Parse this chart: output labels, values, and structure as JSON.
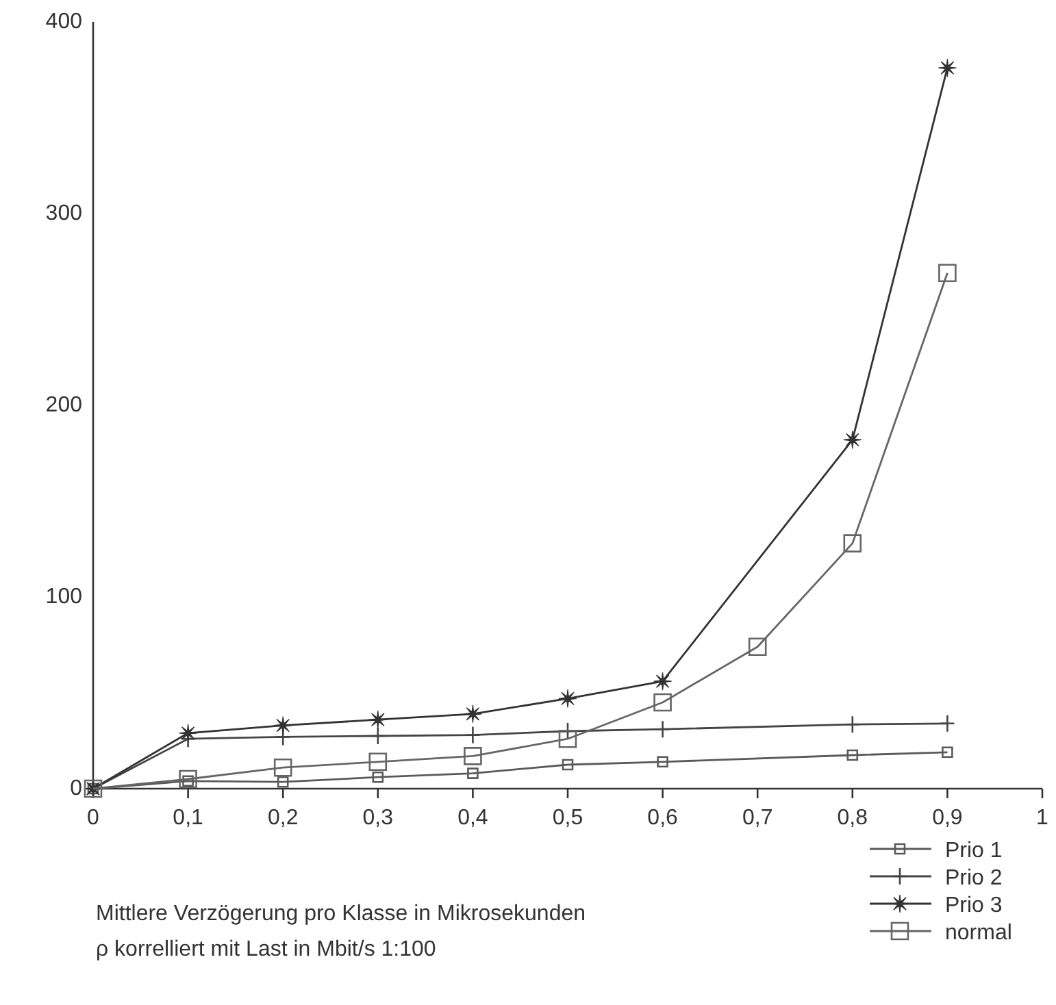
{
  "chart_data": {
    "type": "line",
    "xlim": [
      0,
      1
    ],
    "ylim": [
      0,
      400
    ],
    "xticks": [
      0,
      {
        "value": 0.1,
        "label": "0,1"
      },
      {
        "value": 0.2,
        "label": "0,2"
      },
      {
        "value": 0.3,
        "label": "0,3"
      },
      {
        "value": 0.4,
        "label": "0,4"
      },
      {
        "value": 0.5,
        "label": "0,5"
      },
      {
        "value": 0.6,
        "label": "0,6"
      },
      {
        "value": 0.7,
        "label": "0,7"
      },
      {
        "value": 0.8,
        "label": "0,8"
      },
      {
        "value": 0.9,
        "label": "0,9"
      },
      1
    ],
    "yticks": [
      0,
      100,
      200,
      300,
      400
    ],
    "grid": false,
    "legend": "bottom right",
    "line_style": "solid",
    "annotations": [
      "Mittlere Verzögerung pro Klasse in Mikrosekunden",
      "ρ korrelliert mit Last in Mbit/s 1:100"
    ],
    "series": [
      {
        "name": "Prio 1",
        "color": "#5a5a5a",
        "marker": "square",
        "x": [
          0,
          0.1,
          0.2,
          0.3,
          0.4,
          0.5,
          0.6,
          0.8,
          0.9
        ],
        "values": [
          0,
          4,
          3.5,
          6,
          8,
          12.5,
          14,
          17.5,
          19
        ]
      },
      {
        "name": "Prio 2",
        "color": "#444444",
        "marker": "cross",
        "x": [
          0,
          0.1,
          0.2,
          0.3,
          0.4,
          0.5,
          0.6,
          0.8,
          0.9
        ],
        "values": [
          0,
          26,
          27,
          27.5,
          28,
          30,
          31,
          33.5,
          34
        ]
      },
      {
        "name": "Prio 3",
        "color": "#333333",
        "marker": "star",
        "x": [
          0,
          0.1,
          0.2,
          0.3,
          0.4,
          0.5,
          0.6,
          0.8,
          0.9
        ],
        "values": [
          0,
          29,
          33,
          36,
          39,
          47,
          56,
          182,
          376
        ]
      },
      {
        "name": "normal",
        "color": "#666666",
        "marker": "square",
        "x": [
          0,
          0.1,
          0.2,
          0.3,
          0.4,
          0.5,
          0.6,
          0.7,
          0.8,
          0.9
        ],
        "values": [
          0,
          5,
          11,
          14,
          17,
          26,
          45,
          74,
          128,
          269
        ]
      }
    ]
  }
}
